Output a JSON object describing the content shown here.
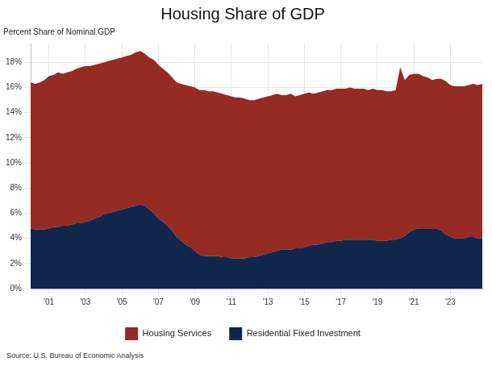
{
  "chart_data": {
    "type": "area",
    "title": "Housing Share of GDP",
    "subtitle": "Percent Share of Nominal GDP",
    "annotations": [
      "Source: U.S. Bureau of Economic Analysis"
    ],
    "categories": [
      null,
      null,
      null,
      null,
      "'01",
      null,
      null,
      null,
      null,
      null,
      null,
      null,
      "'03",
      null,
      null,
      null,
      null,
      null,
      null,
      null,
      "'05",
      null,
      null,
      null,
      null,
      null,
      null,
      null,
      "'07",
      null,
      null,
      null,
      null,
      null,
      null,
      null,
      "'09",
      null,
      null,
      null,
      null,
      null,
      null,
      null,
      "'11",
      null,
      null,
      null,
      null,
      null,
      null,
      null,
      "'13",
      null,
      null,
      null,
      null,
      null,
      null,
      null,
      "'15",
      null,
      null,
      null,
      null,
      null,
      null,
      null,
      "'17",
      null,
      null,
      null,
      null,
      null,
      null,
      null,
      "'19",
      null,
      null,
      null,
      null,
      null,
      null,
      null,
      "'21",
      null,
      null,
      null,
      null,
      null,
      null,
      null,
      "'23",
      null,
      null,
      null,
      null,
      null,
      null,
      null
    ],
    "series": [
      {
        "name": "Residential Fixed Investment",
        "color": "#11264a",
        "values": [
          4.8,
          4.7,
          4.7,
          4.7,
          4.8,
          4.9,
          4.9,
          5.0,
          5.0,
          5.1,
          5.2,
          5.2,
          5.3,
          5.4,
          5.6,
          5.7,
          5.9,
          6.0,
          6.1,
          6.2,
          6.3,
          6.4,
          6.5,
          6.6,
          6.7,
          6.6,
          6.3,
          6.0,
          5.6,
          5.3,
          5.0,
          4.6,
          4.1,
          3.8,
          3.5,
          3.3,
          3.0,
          2.7,
          2.6,
          2.6,
          2.6,
          2.6,
          2.5,
          2.5,
          2.4,
          2.4,
          2.4,
          2.4,
          2.5,
          2.5,
          2.6,
          2.7,
          2.8,
          2.9,
          3.0,
          3.1,
          3.1,
          3.1,
          3.2,
          3.2,
          3.3,
          3.4,
          3.5,
          3.5,
          3.6,
          3.7,
          3.7,
          3.8,
          3.8,
          3.9,
          3.9,
          3.9,
          3.9,
          3.9,
          3.9,
          3.9,
          3.8,
          3.8,
          3.8,
          3.9,
          3.9,
          4.0,
          4.2,
          4.5,
          4.7,
          4.8,
          4.8,
          4.8,
          4.8,
          4.8,
          4.6,
          4.3,
          4.1,
          4.0,
          4.0,
          4.0,
          4.1,
          4.1,
          4.0,
          4.0
        ]
      },
      {
        "name": "Housing Services",
        "color": "#952b22",
        "values": [
          11.6,
          11.6,
          11.7,
          11.9,
          12.1,
          12.1,
          12.3,
          12.1,
          12.2,
          12.2,
          12.3,
          12.4,
          12.4,
          12.3,
          12.2,
          12.2,
          12.1,
          12.1,
          12.1,
          12.1,
          12.1,
          12.1,
          12.1,
          12.2,
          12.2,
          12.1,
          12.1,
          12.2,
          12.2,
          12.2,
          12.2,
          12.2,
          12.3,
          12.5,
          12.7,
          12.8,
          13.0,
          13.1,
          13.2,
          13.1,
          13.1,
          13.0,
          13.0,
          12.9,
          12.9,
          12.8,
          12.8,
          12.7,
          12.5,
          12.5,
          12.5,
          12.5,
          12.5,
          12.5,
          12.5,
          12.3,
          12.3,
          12.4,
          12.1,
          12.2,
          12.2,
          12.2,
          12.0,
          12.1,
          12.1,
          12.1,
          12.1,
          12.1,
          12.1,
          12.0,
          12.1,
          12.0,
          12.0,
          12.0,
          11.9,
          12.0,
          12.0,
          12.0,
          11.9,
          11.8,
          11.9,
          13.6,
          12.4,
          12.5,
          12.4,
          12.3,
          12.1,
          12.0,
          11.8,
          11.9,
          12.1,
          12.2,
          12.1,
          12.1,
          12.1,
          12.1,
          12.1,
          12.2,
          12.2,
          12.3
        ]
      }
    ],
    "ylim": [
      0,
      19.5
    ],
    "yticks": [
      {
        "value": 0,
        "label": "0%"
      },
      {
        "value": 2,
        "label": "2%"
      },
      {
        "value": 4,
        "label": "4%"
      },
      {
        "value": 6,
        "label": "6%"
      },
      {
        "value": 8,
        "label": "8%"
      },
      {
        "value": 10,
        "label": "10%"
      },
      {
        "value": 12,
        "label": "12%"
      },
      {
        "value": 14,
        "label": "14%"
      },
      {
        "value": 16,
        "label": "16%"
      },
      {
        "value": 18,
        "label": "18%"
      }
    ],
    "stacked": true,
    "grid": true,
    "legend": "bottom"
  }
}
